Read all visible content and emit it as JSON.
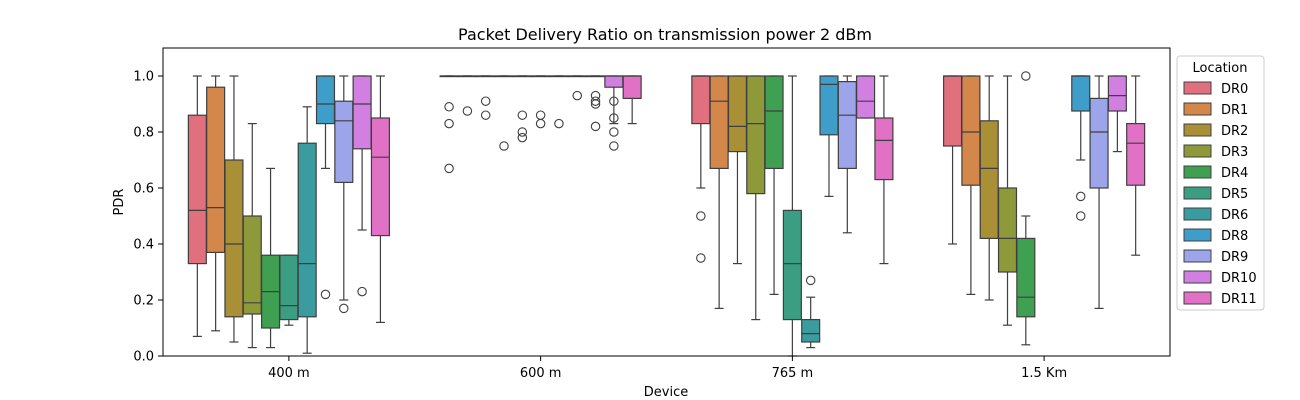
{
  "chart_data": {
    "type": "box",
    "title": "Packet Delivery Ratio on transmission power 2 dBm",
    "xlabel": "Device",
    "ylabel": "PDR",
    "ylim": [
      0,
      1.1
    ],
    "yticks": [
      "0.0",
      "0.2",
      "0.4",
      "0.6",
      "0.8",
      "1.0"
    ],
    "grid": false,
    "categories": [
      "400 m",
      "600 m",
      "765 m",
      "1.5 Km"
    ],
    "legend": {
      "title": "Location",
      "placement": "outside-right",
      "entries": [
        "DR0",
        "DR1",
        "DR2",
        "DR3",
        "DR4",
        "DR5",
        "DR6",
        "DR8",
        "DR9",
        "DR10",
        "DR11"
      ]
    },
    "colors": {
      "DR0": "#e1707f",
      "DR1": "#d4874a",
      "DR2": "#a98f36",
      "DR3": "#8e9a3a",
      "DR4": "#3fa052",
      "DR5": "#3b9e82",
      "DR6": "#3b9ca0",
      "DR8": "#3f9dc9",
      "DR9": "#9ca4ea",
      "DR10": "#d27fe2",
      "DR11": "#e071c4"
    },
    "series": [
      {
        "name": "DR0",
        "boxes": [
          {
            "min": 0.07,
            "q1": 0.33,
            "median": 0.52,
            "q3": 0.86,
            "max": 1.0,
            "outliers": []
          },
          {
            "min": 1.0,
            "q1": 1.0,
            "median": 1.0,
            "q3": 1.0,
            "max": 1.0,
            "outliers": [
              0.89,
              0.83,
              0.67
            ]
          },
          {
            "min": 0.6,
            "q1": 0.83,
            "median": 1.0,
            "q3": 1.0,
            "max": 1.0,
            "outliers": [
              0.5,
              0.35
            ]
          },
          {
            "min": 0.4,
            "q1": 0.75,
            "median": 1.0,
            "q3": 1.0,
            "max": 1.0,
            "outliers": []
          }
        ]
      },
      {
        "name": "DR1",
        "boxes": [
          {
            "min": 0.09,
            "q1": 0.37,
            "median": 0.53,
            "q3": 0.96,
            "max": 1.0,
            "outliers": []
          },
          {
            "min": 1.0,
            "q1": 1.0,
            "median": 1.0,
            "q3": 1.0,
            "max": 1.0,
            "outliers": [
              0.875
            ]
          },
          {
            "min": 0.17,
            "q1": 0.67,
            "median": 0.91,
            "q3": 1.0,
            "max": 1.0,
            "outliers": []
          },
          {
            "min": 0.22,
            "q1": 0.61,
            "median": 0.8,
            "q3": 1.0,
            "max": 1.0,
            "outliers": []
          }
        ]
      },
      {
        "name": "DR2",
        "boxes": [
          {
            "min": 0.05,
            "q1": 0.14,
            "median": 0.4,
            "q3": 0.7,
            "max": 1.0,
            "outliers": []
          },
          {
            "min": 1.0,
            "q1": 1.0,
            "median": 1.0,
            "q3": 1.0,
            "max": 1.0,
            "outliers": [
              0.91,
              0.86
            ]
          },
          {
            "min": 0.33,
            "q1": 0.73,
            "median": 0.82,
            "q3": 1.0,
            "max": 1.0,
            "outliers": []
          },
          {
            "min": 0.2,
            "q1": 0.42,
            "median": 0.67,
            "q3": 0.84,
            "max": 1.0,
            "outliers": []
          }
        ]
      },
      {
        "name": "DR3",
        "boxes": [
          {
            "min": 0.03,
            "q1": 0.15,
            "median": 0.19,
            "q3": 0.5,
            "max": 0.83,
            "outliers": []
          },
          {
            "min": 1.0,
            "q1": 1.0,
            "median": 1.0,
            "q3": 1.0,
            "max": 1.0,
            "outliers": [
              0.75
            ]
          },
          {
            "min": 0.13,
            "q1": 0.58,
            "median": 0.83,
            "q3": 1.0,
            "max": 1.0,
            "outliers": []
          },
          {
            "min": 0.11,
            "q1": 0.3,
            "median": 0.42,
            "q3": 0.6,
            "max": 1.0,
            "outliers": []
          }
        ]
      },
      {
        "name": "DR4",
        "boxes": [
          {
            "min": 0.03,
            "q1": 0.1,
            "median": 0.23,
            "q3": 0.36,
            "max": 0.67,
            "outliers": []
          },
          {
            "min": 1.0,
            "q1": 1.0,
            "median": 1.0,
            "q3": 1.0,
            "max": 1.0,
            "outliers": [
              0.86,
              0.8,
              0.78
            ]
          },
          {
            "min": 0.22,
            "q1": 0.67,
            "median": 0.875,
            "q3": 1.0,
            "max": 1.0,
            "outliers": []
          },
          {
            "min": 0.04,
            "q1": 0.14,
            "median": 0.21,
            "q3": 0.42,
            "max": 0.5,
            "outliers": [
              1.0
            ]
          }
        ]
      },
      {
        "name": "DR5",
        "boxes": [
          {
            "min": 0.11,
            "q1": 0.13,
            "median": 0.18,
            "q3": 0.36,
            "max": 0.36,
            "outliers": []
          },
          {
            "min": 1.0,
            "q1": 1.0,
            "median": 1.0,
            "q3": 1.0,
            "max": 1.0,
            "outliers": [
              0.86,
              0.83
            ]
          },
          {
            "min": 0.0,
            "q1": 0.13,
            "median": 0.33,
            "q3": 0.52,
            "max": 1.0,
            "outliers": []
          }
        ]
      },
      {
        "name": "DR6",
        "boxes": [
          {
            "min": 0.01,
            "q1": 0.14,
            "median": 0.33,
            "q3": 0.76,
            "max": 0.89,
            "outliers": []
          },
          {
            "min": 1.0,
            "q1": 1.0,
            "median": 1.0,
            "q3": 1.0,
            "max": 1.0,
            "outliers": [
              0.83
            ]
          },
          {
            "min": 0.03,
            "q1": 0.05,
            "median": 0.08,
            "q3": 0.13,
            "max": 0.21,
            "outliers": [
              0.27
            ]
          }
        ]
      },
      {
        "name": "DR8",
        "boxes": [
          {
            "min": 0.67,
            "q1": 0.83,
            "median": 0.9,
            "q3": 1.0,
            "max": 1.0,
            "outliers": [
              0.22
            ]
          },
          {
            "min": 1.0,
            "q1": 1.0,
            "median": 1.0,
            "q3": 1.0,
            "max": 1.0,
            "outliers": [
              0.93
            ]
          },
          {
            "min": 0.57,
            "q1": 0.79,
            "median": 0.97,
            "q3": 1.0,
            "max": 1.0,
            "outliers": []
          },
          {
            "min": 0.7,
            "q1": 0.875,
            "median": 1.0,
            "q3": 1.0,
            "max": 1.0,
            "outliers": [
              0.57,
              0.5
            ]
          }
        ]
      },
      {
        "name": "DR9",
        "boxes": [
          {
            "min": 0.2,
            "q1": 0.62,
            "median": 0.84,
            "q3": 0.91,
            "max": 1.0,
            "outliers": [
              0.17
            ]
          },
          {
            "min": 1.0,
            "q1": 1.0,
            "median": 1.0,
            "q3": 1.0,
            "max": 1.0,
            "outliers": [
              0.93,
              0.91,
              0.9,
              0.82
            ]
          },
          {
            "min": 0.44,
            "q1": 0.67,
            "median": 0.86,
            "q3": 0.98,
            "max": 1.0,
            "outliers": []
          },
          {
            "min": 0.17,
            "q1": 0.6,
            "median": 0.8,
            "q3": 0.92,
            "max": 1.0,
            "outliers": []
          }
        ]
      },
      {
        "name": "DR10",
        "boxes": [
          {
            "min": 0.45,
            "q1": 0.74,
            "median": 0.9,
            "q3": 1.0,
            "max": 1.0,
            "outliers": [
              0.23
            ]
          },
          {
            "min": 0.83,
            "q1": 0.96,
            "median": 1.0,
            "q3": 1.0,
            "max": 1.0,
            "outliers": [
              0.91,
              0.85,
              0.8,
              0.75
            ]
          },
          {
            "min": 0.85,
            "q1": 0.85,
            "median": 0.91,
            "q3": 1.0,
            "max": 1.0,
            "outliers": []
          },
          {
            "min": 0.73,
            "q1": 0.875,
            "median": 0.93,
            "q3": 1.0,
            "max": 1.0,
            "outliers": []
          }
        ]
      },
      {
        "name": "DR11",
        "boxes": [
          {
            "min": 0.12,
            "q1": 0.43,
            "median": 0.71,
            "q3": 0.85,
            "max": 1.0,
            "outliers": []
          },
          {
            "min": 0.83,
            "q1": 0.92,
            "median": 1.0,
            "q3": 1.0,
            "max": 1.0,
            "outliers": []
          },
          {
            "min": 0.33,
            "q1": 0.63,
            "median": 0.77,
            "q3": 0.85,
            "max": 1.0,
            "outliers": []
          },
          {
            "min": 0.36,
            "q1": 0.61,
            "median": 0.76,
            "q3": 0.83,
            "max": 1.0,
            "outliers": []
          }
        ]
      }
    ]
  }
}
